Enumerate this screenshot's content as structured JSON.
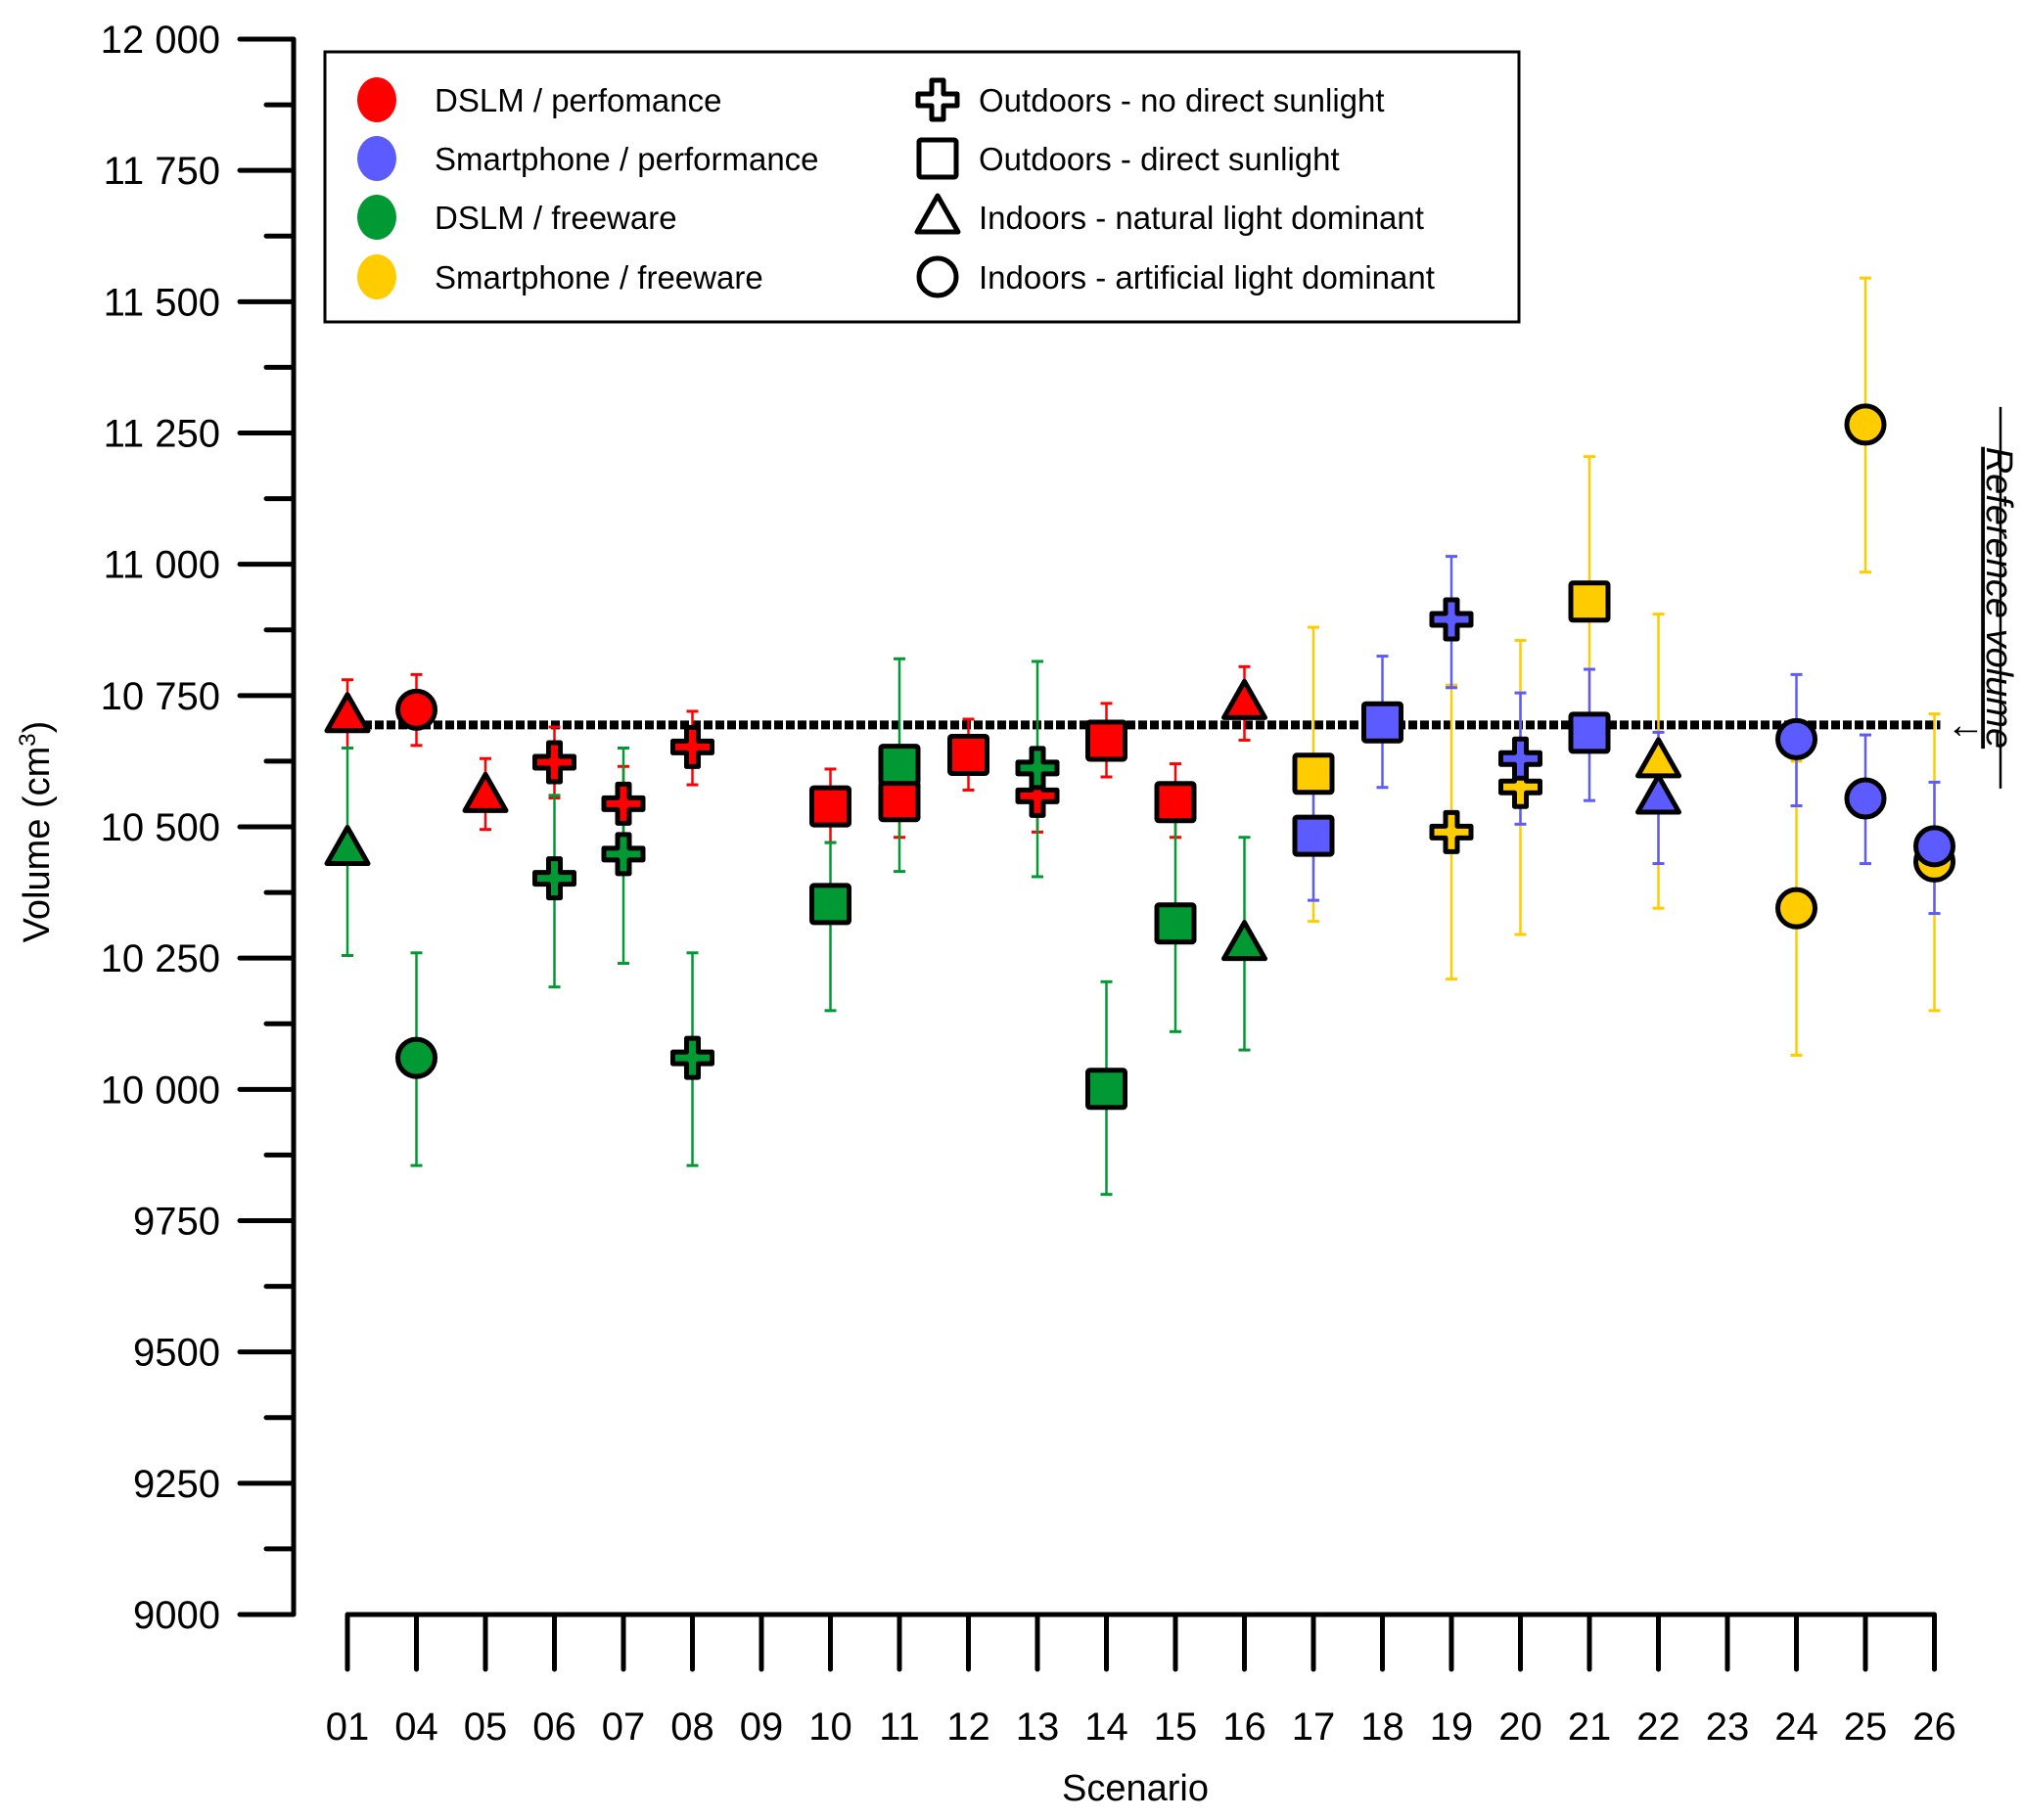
{
  "chart_data": {
    "type": "scatter",
    "title": "",
    "xlabel": "Scenario",
    "ylabel": "Volume (cm³)",
    "ylabel_base": "Volume (cm",
    "ylabel_sup": "3",
    "ylabel_end": ")",
    "ylim": [
      9000,
      12000
    ],
    "y_major_step": 250,
    "y_ticks": [
      9000,
      9250,
      9500,
      9750,
      10000,
      10250,
      10500,
      10750,
      11000,
      11250,
      11500,
      11750,
      12000
    ],
    "y_tick_labels": [
      "9000",
      "9250",
      "9500",
      "9750",
      "10 000",
      "10 250",
      "10 500",
      "10 750",
      "11 000",
      "11 250",
      "11 500",
      "11 750",
      "12 000"
    ],
    "categories": [
      "01",
      "04",
      "05",
      "06",
      "07",
      "08",
      "09",
      "10",
      "11",
      "12",
      "13",
      "14",
      "15",
      "16",
      "17",
      "18",
      "19",
      "20",
      "21",
      "22",
      "23",
      "24",
      "25",
      "26"
    ],
    "grid": false,
    "reference_line": {
      "value": 10694,
      "label": "Reference volume",
      "arrow": "←"
    },
    "legend": {
      "placement": "top-left",
      "colors": [
        {
          "key": "dslm_perf",
          "label": "DSLM / perfomance",
          "color": "#ff0000"
        },
        {
          "key": "phone_perf",
          "label": "Smartphone / performance",
          "color": "#5b5bff"
        },
        {
          "key": "dslm_free",
          "label": "DSLM / freeware",
          "color": "#009933"
        },
        {
          "key": "phone_free",
          "label": "Smartphone / freeware",
          "color": "#ffcc00"
        }
      ],
      "shapes": [
        {
          "key": "cross",
          "label": "Outdoors - no direct sunlight"
        },
        {
          "key": "square",
          "label": "Outdoors - direct sunlight"
        },
        {
          "key": "triangle",
          "label": "Indoors - natural light dominant"
        },
        {
          "key": "circle",
          "label": "Indoors - artificial light dominant"
        }
      ]
    },
    "series": [
      {
        "name": "DSLM / perfomance",
        "color_key": "dslm_perf",
        "points": [
          {
            "x": "01",
            "shape": "triangle",
            "y": 10711,
            "lo": 10650,
            "hi": 10780
          },
          {
            "x": "04",
            "shape": "circle",
            "y": 10723,
            "lo": 10655,
            "hi": 10790
          },
          {
            "x": "05",
            "shape": "triangle",
            "y": 10559,
            "lo": 10495,
            "hi": 10630
          },
          {
            "x": "06",
            "shape": "cross",
            "y": 10623,
            "lo": 10555,
            "hi": 10690
          },
          {
            "x": "07",
            "shape": "cross",
            "y": 10544,
            "lo": 10480,
            "hi": 10615
          },
          {
            "x": "08",
            "shape": "cross",
            "y": 10652,
            "lo": 10580,
            "hi": 10720
          },
          {
            "x": "10",
            "shape": "square",
            "y": 10539,
            "lo": 10470,
            "hi": 10610
          },
          {
            "x": "11",
            "shape": "square",
            "y": 10549,
            "lo": 10480,
            "hi": 10620
          },
          {
            "x": "12",
            "shape": "square",
            "y": 10637,
            "lo": 10570,
            "hi": 10705
          },
          {
            "x": "13",
            "shape": "cross",
            "y": 10559,
            "lo": 10490,
            "hi": 10630
          },
          {
            "x": "14",
            "shape": "square",
            "y": 10664,
            "lo": 10595,
            "hi": 10735
          },
          {
            "x": "15",
            "shape": "square",
            "y": 10547,
            "lo": 10480,
            "hi": 10620
          },
          {
            "x": "16",
            "shape": "triangle",
            "y": 10736,
            "lo": 10665,
            "hi": 10805
          }
        ]
      },
      {
        "name": "DSLM / freeware",
        "color_key": "dslm_free",
        "points": [
          {
            "x": "01",
            "shape": "triangle",
            "y": 10458,
            "lo": 10255,
            "hi": 10650
          },
          {
            "x": "04",
            "shape": "circle",
            "y": 10060,
            "lo": 9855,
            "hi": 10260
          },
          {
            "x": "06",
            "shape": "cross",
            "y": 10402,
            "lo": 10195,
            "hi": 10560
          },
          {
            "x": "07",
            "shape": "cross",
            "y": 10448,
            "lo": 10240,
            "hi": 10650
          },
          {
            "x": "08",
            "shape": "cross",
            "y": 10060,
            "lo": 9855,
            "hi": 10260
          },
          {
            "x": "10",
            "shape": "square",
            "y": 10353,
            "lo": 10150,
            "hi": 10470
          },
          {
            "x": "11",
            "shape": "square",
            "y": 10618,
            "lo": 10415,
            "hi": 10820
          },
          {
            "x": "13",
            "shape": "cross",
            "y": 10612,
            "lo": 10405,
            "hi": 10815
          },
          {
            "x": "14",
            "shape": "square",
            "y": 10001,
            "lo": 9800,
            "hi": 10205
          },
          {
            "x": "15",
            "shape": "square",
            "y": 10316,
            "lo": 10110,
            "hi": 10520
          },
          {
            "x": "16",
            "shape": "triangle",
            "y": 10277,
            "lo": 10075,
            "hi": 10480
          }
        ]
      },
      {
        "name": "Smartphone / freeware",
        "color_key": "phone_free",
        "points": [
          {
            "x": "17",
            "shape": "square",
            "y": 10601,
            "lo": 10320,
            "hi": 10880
          },
          {
            "x": "19",
            "shape": "cross",
            "y": 10490,
            "lo": 10210,
            "hi": 10770
          },
          {
            "x": "20",
            "shape": "cross",
            "y": 10576,
            "lo": 10295,
            "hi": 10855
          },
          {
            "x": "21",
            "shape": "square",
            "y": 10929,
            "lo": 10650,
            "hi": 11205
          },
          {
            "x": "22",
            "shape": "triangle",
            "y": 10625,
            "lo": 10345,
            "hi": 10905
          },
          {
            "x": "24",
            "shape": "circle",
            "y": 10345,
            "lo": 10065,
            "hi": 10625
          },
          {
            "x": "25",
            "shape": "circle",
            "y": 11266,
            "lo": 10985,
            "hi": 11545
          },
          {
            "x": "26",
            "shape": "circle",
            "y": 10434,
            "lo": 10150,
            "hi": 10715
          }
        ]
      },
      {
        "name": "Smartphone / performance",
        "color_key": "phone_perf",
        "points": [
          {
            "x": "17",
            "shape": "square",
            "y": 10483,
            "lo": 10360,
            "hi": 10600
          },
          {
            "x": "18",
            "shape": "square",
            "y": 10699,
            "lo": 10575,
            "hi": 10825
          },
          {
            "x": "19",
            "shape": "cross",
            "y": 10895,
            "lo": 10765,
            "hi": 11015
          },
          {
            "x": "20",
            "shape": "cross",
            "y": 10630,
            "lo": 10505,
            "hi": 10755
          },
          {
            "x": "21",
            "shape": "square",
            "y": 10679,
            "lo": 10550,
            "hi": 10800
          },
          {
            "x": "22",
            "shape": "triangle",
            "y": 10556,
            "lo": 10430,
            "hi": 10680
          },
          {
            "x": "24",
            "shape": "circle",
            "y": 10667,
            "lo": 10540,
            "hi": 10790
          },
          {
            "x": "25",
            "shape": "circle",
            "y": 10554,
            "lo": 10430,
            "hi": 10675
          },
          {
            "x": "26",
            "shape": "circle",
            "y": 10463,
            "lo": 10335,
            "hi": 10585
          }
        ]
      }
    ]
  }
}
